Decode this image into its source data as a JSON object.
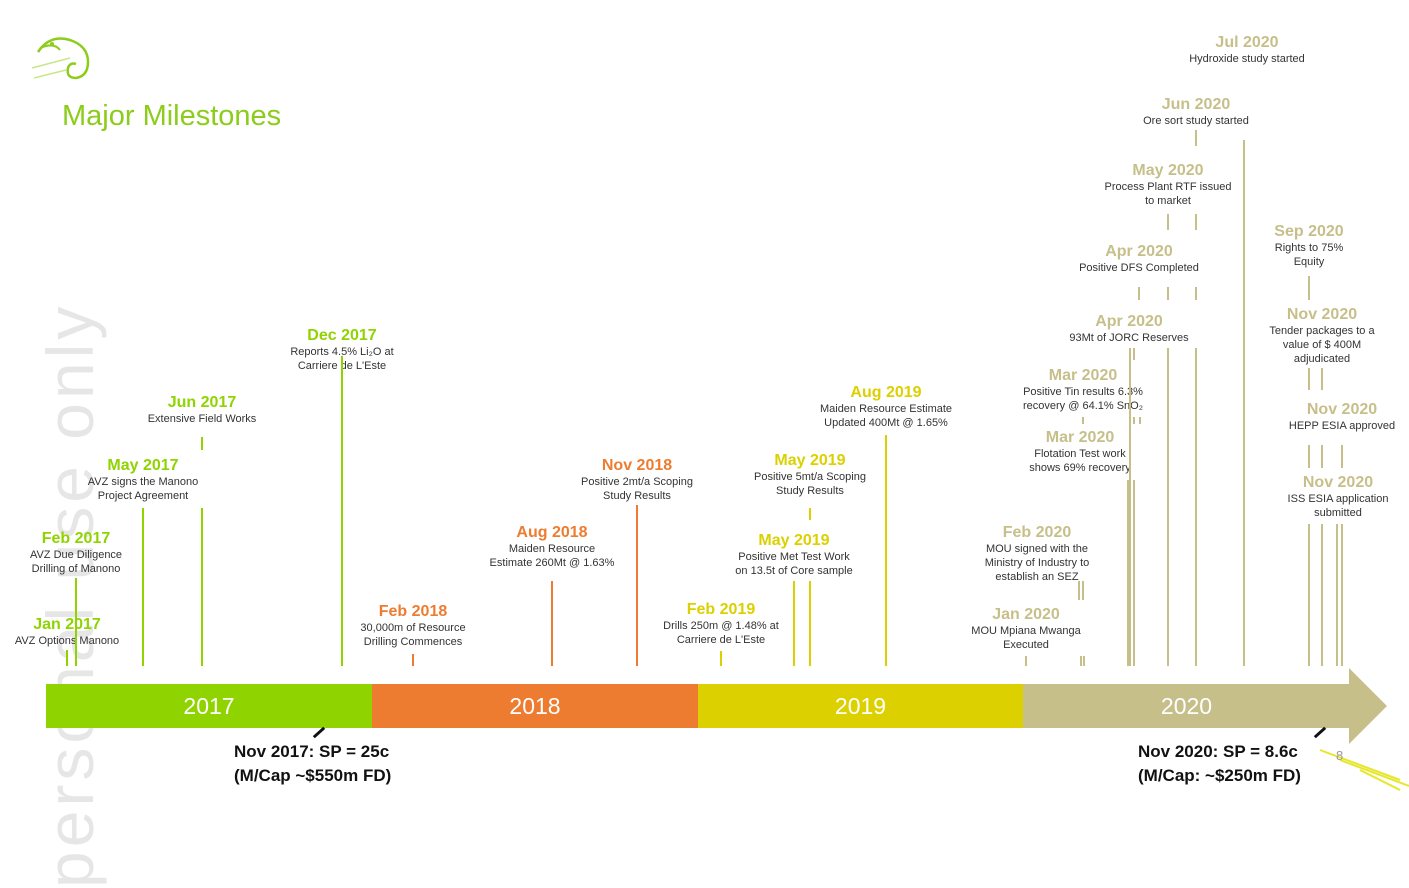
{
  "slide": {
    "title": "Major Milestones",
    "watermark": "personal use only",
    "page_number": "8"
  },
  "colors": {
    "2017": "#8fd400",
    "2018": "#ee7c30",
    "2019": "#dcd000",
    "2020": "#c7bf8a",
    "title": "#8ccc1a"
  },
  "timeline": {
    "years": [
      {
        "label": "2017",
        "color": "#8fd400"
      },
      {
        "label": "2018",
        "color": "#ee7c30"
      },
      {
        "label": "2019",
        "color": "#dcd000"
      },
      {
        "label": "2020",
        "color": "#c7bf8a"
      }
    ]
  },
  "milestones": [
    {
      "id": "jan2017",
      "month": "Jan 2017",
      "lines": [
        "AVZ Options Manono"
      ],
      "year": "2017"
    },
    {
      "id": "feb2017",
      "month": "Feb 2017",
      "lines": [
        "AVZ Due Diligence",
        "Drilling of Manono"
      ],
      "year": "2017"
    },
    {
      "id": "may2017",
      "month": "May 2017",
      "lines": [
        "AVZ signs the Manono",
        "Project Agreement"
      ],
      "year": "2017"
    },
    {
      "id": "jun2017",
      "month": "Jun 2017",
      "lines": [
        "Extensive Field Works"
      ],
      "year": "2017"
    },
    {
      "id": "dec2017",
      "month": "Dec 2017",
      "lines": [
        "Reports 4.5% Li₂O at",
        "Carriere de L'Este"
      ],
      "year": "2017"
    },
    {
      "id": "feb2018",
      "month": "Feb 2018",
      "lines": [
        "30,000m of Resource",
        "Drilling Commences"
      ],
      "year": "2018"
    },
    {
      "id": "aug2018",
      "month": "Aug 2018",
      "lines": [
        "Maiden Resource",
        "Estimate 260Mt @ 1.63%"
      ],
      "year": "2018"
    },
    {
      "id": "nov2018",
      "month": "Nov 2018",
      "lines": [
        "Positive 2mt/a Scoping",
        "Study Results"
      ],
      "year": "2018"
    },
    {
      "id": "feb2019",
      "month": "Feb 2019",
      "lines": [
        "Drills 250m @ 1.48% at",
        "Carriere de L'Este"
      ],
      "year": "2019"
    },
    {
      "id": "may2019a",
      "month": "May 2019",
      "lines": [
        "Positive Met Test Work",
        "on 13.5t of Core sample"
      ],
      "year": "2019"
    },
    {
      "id": "may2019b",
      "month": "May 2019",
      "lines": [
        "Positive 5mt/a Scoping",
        "Study Results"
      ],
      "year": "2019"
    },
    {
      "id": "aug2019",
      "month": "Aug 2019",
      "lines": [
        "Maiden Resource Estimate",
        "Updated 400Mt @ 1.65%"
      ],
      "year": "2019"
    },
    {
      "id": "jan2020",
      "month": "Jan 2020",
      "lines": [
        "MOU Mpiana Mwanga",
        "Executed"
      ],
      "year": "2020"
    },
    {
      "id": "feb2020",
      "month": "Feb 2020",
      "lines": [
        "MOU signed with the",
        "Ministry of Industry to",
        "establish an SEZ"
      ],
      "year": "2020"
    },
    {
      "id": "mar2020a",
      "month": "Mar 2020",
      "lines": [
        "Flotation Test work",
        "shows 69% recovery"
      ],
      "year": "2020"
    },
    {
      "id": "mar2020b",
      "month": "Mar 2020",
      "lines": [
        "Positive Tin results 6.3%",
        "recovery @ 64.1% SnO₂"
      ],
      "year": "2020"
    },
    {
      "id": "apr2020a",
      "month": "Apr 2020",
      "lines": [
        "93Mt of JORC Reserves"
      ],
      "year": "2020"
    },
    {
      "id": "apr2020b",
      "month": "Apr 2020",
      "lines": [
        "Positive DFS Completed"
      ],
      "year": "2020"
    },
    {
      "id": "may2020",
      "month": "May 2020",
      "lines": [
        "Process Plant RTF issued",
        "to market"
      ],
      "year": "2020"
    },
    {
      "id": "jun2020",
      "month": "Jun 2020",
      "lines": [
        "Ore sort study started"
      ],
      "year": "2020"
    },
    {
      "id": "jul2020",
      "month": "Jul 2020",
      "lines": [
        "Hydroxide study started"
      ],
      "year": "2020"
    },
    {
      "id": "sep2020",
      "month": "Sep 2020",
      "lines": [
        "Rights to 75%",
        "Equity"
      ],
      "year": "2020"
    },
    {
      "id": "nov2020a",
      "month": "Nov 2020",
      "lines": [
        "Tender packages to a",
        "value of $ 400M",
        "adjudicated"
      ],
      "year": "2020"
    },
    {
      "id": "nov2020b",
      "month": "Nov 2020",
      "lines": [
        "HEPP ESIA approved"
      ],
      "year": "2020"
    },
    {
      "id": "nov2020c",
      "month": "Nov 2020",
      "lines": [
        "ISS  ESIA application",
        "submitted"
      ],
      "year": "2020"
    }
  ],
  "annotations": {
    "left": {
      "line1": "Nov 2017: SP = 25c",
      "line2": "(M/Cap ~$550m FD)"
    },
    "right": {
      "line1": "Nov 2020: SP = 8.6c",
      "line2": "(M/Cap: ~$250m FD)"
    }
  }
}
